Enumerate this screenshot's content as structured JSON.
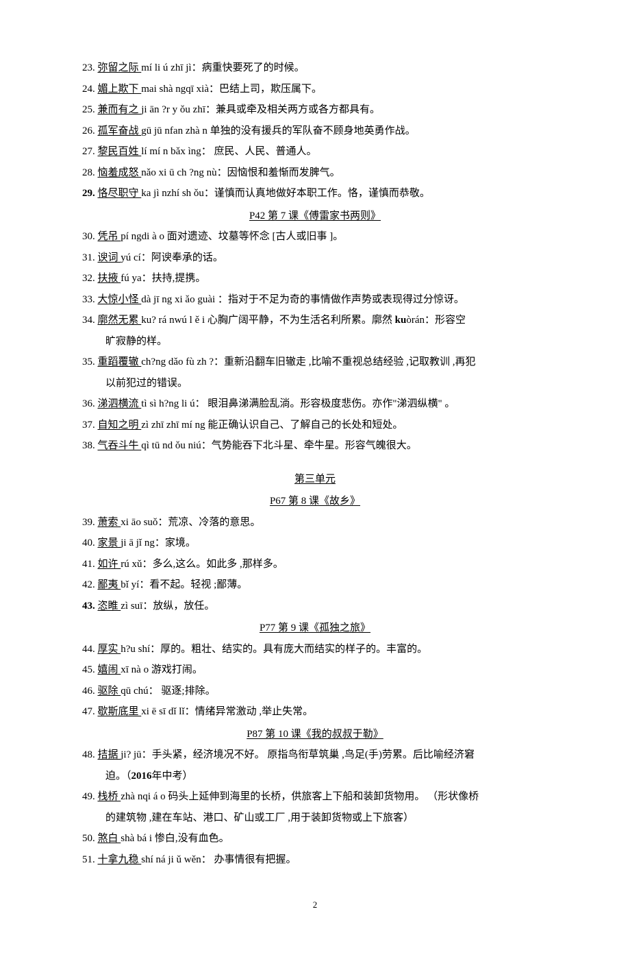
{
  "entries_block1": [
    {
      "num": "23.",
      "term": "弥留之际 ",
      "rest": "mí li ú zhī jì：病重快要死了的时候。"
    },
    {
      "num": "24.",
      "term": "媚上欺下 ",
      "rest": "mai shà ngqī xià：巴结上司，欺压属下。"
    },
    {
      "num": "25.",
      "term": "兼而有之 ",
      "rest": "ji ān ?r y ǒu zhī：兼具或牵及相关两方或各方都具有。"
    },
    {
      "num": "26.",
      "term": "孤军奋战 ",
      "rest": "gū jū nfan zhà n 单独的没有援兵的军队奋不顾身地英勇作战。"
    },
    {
      "num": "27.",
      "term": "黎民百姓 ",
      "rest": "lí mí n bǎx ìng： 庶民、人民、普通人。"
    },
    {
      "num": "28.",
      "term": "恼羞成怒 ",
      "rest": "nǎo xi ū ch ?ng nù：因恼恨和羞惭而发脾气。"
    },
    {
      "num": "29.",
      "numBold": true,
      "term": "恪尽职守 ",
      "rest": "ka jì nzhí sh ǒu：谨慎而认真地做好本职工作。恪，谨慎而恭敬。"
    }
  ],
  "heading1": "P42 第 7 课《傅雷家书两则》",
  "entries_block2": [
    {
      "num": "30.",
      "term": "凭吊 ",
      "rest": "pí ngdi à o 面对遗迹、坟墓等怀念 [古人或旧事 ]。"
    },
    {
      "num": "31.",
      "term": "谀词 ",
      "rest": "yú cí：阿谀奉承的话。"
    },
    {
      "num": "32.",
      "term": "扶掖 ",
      "rest": "fú ya：扶持,提携。"
    },
    {
      "num": "33.",
      "term": "大惊小怪 ",
      "rest": "dà jī ng xi ǎo guài ：指对于不足为奇的事情做作声势或表现得过分惊讶。"
    },
    {
      "num": "34.",
      "term": "廓然无累 ",
      "rest": "ku? rá nwú l ě i 心胸广阔平静，不为生活名利所累。廓然   ",
      "bold": "ku",
      "afterBold": "òrán：形容空",
      "cont": "旷寂静的样。"
    },
    {
      "num": "35.",
      "term": "重蹈覆辙 ",
      "rest": "ch?ng dǎo fù zh ?：重新沿翻车旧辙走 ,比喻不重视总结经验 ,记取教训 ,再犯",
      "cont": "以前犯过的错误。"
    },
    {
      "num": "36.",
      "term": "涕泗横流 ",
      "rest": "tì sì h?ng li ú： 眼泪鼻涕满脸乱淌。形容极度悲伤。亦作\"涕泗纵横\"  。"
    },
    {
      "num": "37.",
      "term": "自知之明 ",
      "rest": "zì zhī zhī mí ng 能正确认识自己、了解自己的长处和短处。"
    },
    {
      "num": "38.",
      "term": "气吞斗牛 ",
      "rest": "qì tū nd ǒu niú：气势能吞下北斗星、牵牛星。形容气魄很大。"
    }
  ],
  "unit_heading": "第三单元",
  "heading2": "P67 第 8 课《故乡》",
  "entries_block3": [
    {
      "num": "39.",
      "term": "萧索 ",
      "rest": "xi āo suǒ：荒凉、冷落的意思。"
    },
    {
      "num": "40.",
      "term": "家景 ",
      "rest": "ji ā jǐ ng：家境。"
    },
    {
      "num": "41.",
      "term": "如许 ",
      "rest": "rú xǔ：多么,这么。如此多 ,那样多。"
    },
    {
      "num": "42.",
      "term": "鄙夷 ",
      "rest": "bǐ yí：看不起。轻视 ;鄙薄。"
    },
    {
      "num": "43.",
      "numBold": true,
      "term": "恣睢 ",
      "rest": "zì suī：放纵，放任。"
    }
  ],
  "heading3": "P77 第 9 课《孤独之旅》",
  "entries_block4": [
    {
      "num": "44.",
      "term": "厚实 ",
      "rest": "h?u shí：厚的。粗壮、结实的。具有庞大而结实的样子的。丰富的。"
    },
    {
      "num": "45.",
      "term": "嬉闹 ",
      "rest": "xī nà o  游戏打闹。"
    },
    {
      "num": "46.",
      "term": "驱除 ",
      "rest": "qū chú：  驱逐;排除。"
    },
    {
      "num": "47.",
      "term": "歇斯底里 ",
      "rest": "xi ē sī dǐ lǐ：情绪异常激动 ,举止失常。"
    }
  ],
  "heading4": "P87 第 10 课《我的叔叔于勒》",
  "entries_block5": [
    {
      "num": "48.",
      "term": "拮据 ",
      "rest": "ji? jū：手头紧，经济境况不好。  原指鸟衔草筑巢 ,鸟足(手)劳累。后比喻经济窘",
      "cont": "迫。（",
      "contBold": "2016",
      "contAfterBold": "年中考）"
    },
    {
      "num": "49.",
      "term": "栈桥 ",
      "rest": "zhà nqi á o 码头上延伸到海里的长桥，供旅客上下船和装卸货物用。  （形状像桥",
      "cont": "的建筑物 ,建在车站、港口、矿山或工厂  ,用于装卸货物或上下旅客）"
    },
    {
      "num": "50.",
      "term": "煞白 ",
      "rest": "shà bá i 惨白,没有血色。"
    },
    {
      "num": "51.",
      "term": "十拿九稳 ",
      "rest": "shí ná ji ǔ wěn： 办事情很有把握。"
    }
  ],
  "page_number": "2"
}
